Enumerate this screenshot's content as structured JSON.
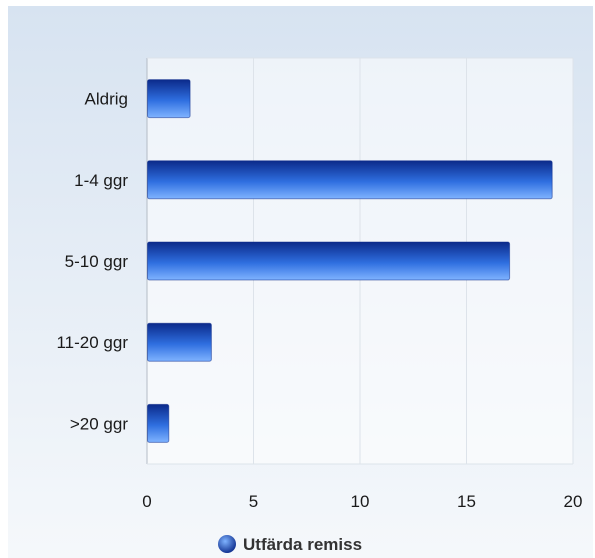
{
  "chart_data": {
    "type": "bar",
    "orientation": "horizontal",
    "categories": [
      "Aldrig",
      "1-4 ggr",
      "5-10 ggr",
      "11-20 ggr",
      ">20 ggr"
    ],
    "series": [
      {
        "name": "Utfärda remiss",
        "values": [
          2,
          19,
          17,
          3,
          1
        ]
      }
    ],
    "xlim": [
      0,
      20
    ],
    "xticks": [
      0,
      5,
      10,
      15,
      20
    ],
    "grid": true,
    "legend": "bottom-center",
    "colors": {
      "bar_dark": "#0b2a8a",
      "bar_mid": "#2f6fe0",
      "bar_light": "#7fb3ff",
      "background_top": "#d7e3f1",
      "background_bottom": "#f5f8fb",
      "grid": "#dde3ea",
      "axis": "#b4bcc6"
    }
  }
}
